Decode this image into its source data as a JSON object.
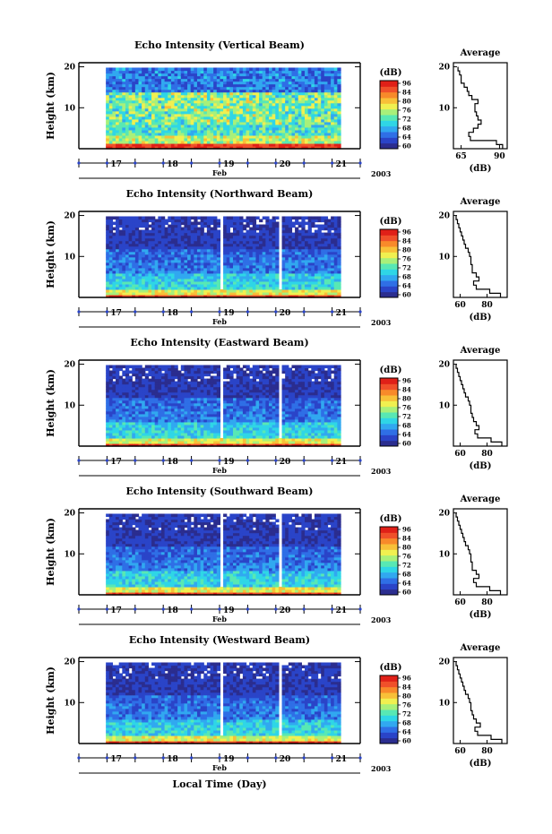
{
  "figure": {
    "xlabel": "Local Time (Day)",
    "month_label": "Feb",
    "year_label": "2003",
    "colorbar_unit": "(dB)",
    "average_title": "Average",
    "average_unit": "(dB)",
    "height_label": "Height (km)"
  },
  "colors": {
    "colormap": [
      "#2b2d8f",
      "#2a44c8",
      "#2f6fe6",
      "#31a8f0",
      "#2fd6e6",
      "#58e8b4",
      "#a8f07a",
      "#f0f050",
      "#f8c038",
      "#f88a2a",
      "#f0502a",
      "#e02018"
    ]
  },
  "chart_data": [
    {
      "type": "heatmap",
      "title": "Echo Intensity (Vertical Beam)",
      "ylabel": "Height (km)",
      "x_ticks": [
        "17",
        "18",
        "19",
        "20",
        "21"
      ],
      "x_range_days": [
        16.5,
        21.5
      ],
      "data_x_range_days": [
        16.98,
        21.15
      ],
      "ylim": [
        0,
        21
      ],
      "y_ticks": [
        "10",
        "20"
      ],
      "colorbar": {
        "ticks": [
          "96",
          "84",
          "80",
          "76",
          "72",
          "68",
          "64",
          "60"
        ],
        "range": [
          60,
          96
        ]
      },
      "gaps": [],
      "profile": {
        "title": "Average",
        "xlabel": "(dB)",
        "x_ticks": [
          "65",
          "90"
        ],
        "xlim": [
          60,
          95
        ],
        "heights": [
          1,
          2,
          3,
          4,
          5,
          6,
          7,
          8,
          9,
          10,
          11,
          12,
          13,
          14,
          15,
          16,
          17,
          18,
          19,
          20
        ],
        "values": [
          92,
          88,
          71,
          70,
          73,
          76,
          78,
          76,
          75,
          74,
          74,
          76,
          72,
          70,
          69,
          67,
          65,
          65,
          64,
          63
        ]
      }
    },
    {
      "type": "heatmap",
      "title": "Echo Intensity (Northward Beam)",
      "ylabel": "Height (km)",
      "x_ticks": [
        "17",
        "18",
        "19",
        "20",
        "21"
      ],
      "x_range_days": [
        16.5,
        21.5
      ],
      "data_x_range_days": [
        16.98,
        21.15
      ],
      "ylim": [
        0,
        21
      ],
      "y_ticks": [
        "10",
        "20"
      ],
      "colorbar": {
        "ticks": [
          "96",
          "84",
          "80",
          "76",
          "72",
          "68",
          "64",
          "60"
        ],
        "range": [
          60,
          96
        ]
      },
      "gaps": [
        [
          19.0,
          19.06
        ],
        [
          20.03,
          20.13
        ]
      ],
      "profile": {
        "title": "Average",
        "xlabel": "(dB)",
        "x_ticks": [
          "60",
          "80"
        ],
        "xlim": [
          55,
          95
        ],
        "heights": [
          1,
          2,
          3,
          4,
          5,
          6,
          7,
          8,
          9,
          10,
          11,
          12,
          13,
          14,
          15,
          16,
          17,
          18,
          19,
          20
        ],
        "values": [
          90,
          82,
          72,
          70,
          74,
          72,
          69,
          69,
          68,
          68,
          67,
          66,
          64,
          63,
          62,
          61,
          60,
          59,
          58,
          57
        ]
      }
    },
    {
      "type": "heatmap",
      "title": "Echo Intensity (Eastward Beam)",
      "ylabel": "Height (km)",
      "x_ticks": [
        "17",
        "18",
        "19",
        "20",
        "21"
      ],
      "x_range_days": [
        16.5,
        21.5
      ],
      "data_x_range_days": [
        16.98,
        21.15
      ],
      "ylim": [
        0,
        21
      ],
      "y_ticks": [
        "10",
        "20"
      ],
      "colorbar": {
        "ticks": [
          "96",
          "84",
          "80",
          "76",
          "72",
          "68",
          "64",
          "60"
        ],
        "range": [
          60,
          96
        ]
      },
      "gaps": [
        [
          19.0,
          19.06
        ],
        [
          20.03,
          20.13
        ]
      ],
      "profile": {
        "title": "Average",
        "xlabel": "(dB)",
        "x_ticks": [
          "60",
          "80"
        ],
        "xlim": [
          55,
          95
        ],
        "heights": [
          1,
          2,
          3,
          4,
          5,
          6,
          7,
          8,
          9,
          10,
          11,
          12,
          13,
          14,
          15,
          16,
          17,
          18,
          19,
          20
        ],
        "values": [
          91,
          83,
          73,
          71,
          74,
          72,
          70,
          69,
          68,
          68,
          67,
          66,
          64,
          63,
          62,
          61,
          60,
          59,
          58,
          57
        ]
      }
    },
    {
      "type": "heatmap",
      "title": "Echo Intensity (Southward Beam)",
      "ylabel": "Height (km)",
      "x_ticks": [
        "17",
        "18",
        "19",
        "20",
        "21"
      ],
      "x_range_days": [
        16.5,
        21.5
      ],
      "data_x_range_days": [
        16.98,
        21.15
      ],
      "ylim": [
        0,
        21
      ],
      "y_ticks": [
        "10",
        "20"
      ],
      "colorbar": {
        "ticks": [
          "96",
          "84",
          "80",
          "76",
          "72",
          "68",
          "64",
          "60"
        ],
        "range": [
          60,
          96
        ]
      },
      "gaps": [
        [
          19.0,
          19.06
        ],
        [
          20.03,
          20.13
        ]
      ],
      "profile": {
        "title": "Average",
        "xlabel": "(dB)",
        "x_ticks": [
          "60",
          "80"
        ],
        "xlim": [
          55,
          95
        ],
        "heights": [
          1,
          2,
          3,
          4,
          5,
          6,
          7,
          8,
          9,
          10,
          11,
          12,
          13,
          14,
          15,
          16,
          17,
          18,
          19,
          20
        ],
        "values": [
          90,
          82,
          72,
          70,
          74,
          72,
          69,
          69,
          68,
          68,
          67,
          66,
          64,
          63,
          62,
          61,
          60,
          59,
          58,
          57
        ]
      }
    },
    {
      "type": "heatmap",
      "title": "Echo Intensity (Westward Beam)",
      "ylabel": "Height (km)",
      "x_ticks": [
        "17",
        "18",
        "19",
        "20",
        "21"
      ],
      "x_range_days": [
        16.5,
        21.5
      ],
      "data_x_range_days": [
        16.98,
        21.15
      ],
      "ylim": [
        0,
        21
      ],
      "y_ticks": [
        "10",
        "20"
      ],
      "colorbar": {
        "ticks": [
          "96",
          "84",
          "80",
          "76",
          "72",
          "68",
          "64",
          "60"
        ],
        "range": [
          60,
          96
        ]
      },
      "gaps": [
        [
          19.0,
          19.06
        ],
        [
          20.03,
          20.13
        ]
      ],
      "profile": {
        "title": "Average",
        "xlabel": "(dB)",
        "x_ticks": [
          "60",
          "80"
        ],
        "xlim": [
          55,
          95
        ],
        "heights": [
          1,
          2,
          3,
          4,
          5,
          6,
          7,
          8,
          9,
          10,
          11,
          12,
          13,
          14,
          15,
          16,
          17,
          18,
          19,
          20
        ],
        "values": [
          91,
          83,
          73,
          71,
          75,
          72,
          70,
          69,
          68,
          68,
          67,
          66,
          64,
          63,
          62,
          61,
          60,
          59,
          58,
          57
        ]
      }
    }
  ]
}
